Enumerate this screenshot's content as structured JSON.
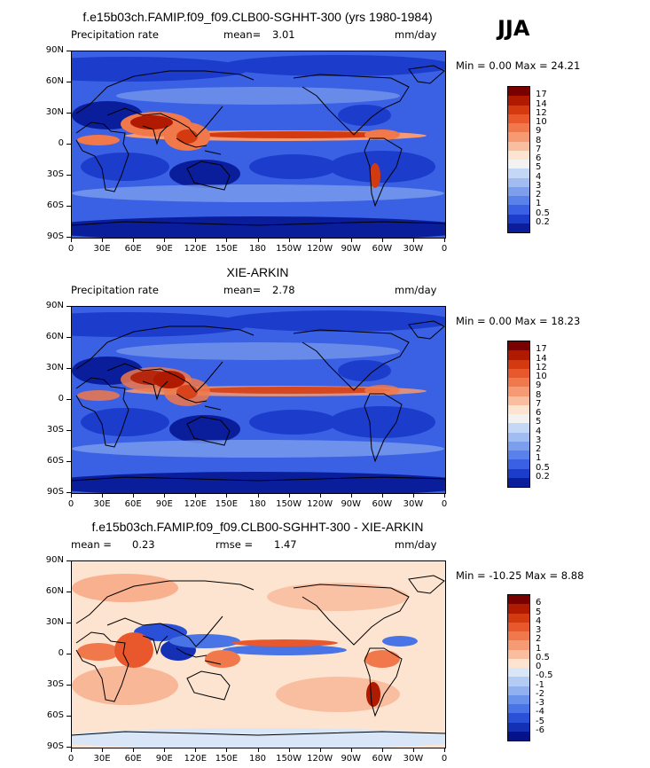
{
  "season": "JJA",
  "panels": [
    {
      "title": "f.e15b03ch.FAMIP.f09_f09.CLB00-SGHHT-300 (yrs 1980-1984)",
      "left_label": "Precipitation rate",
      "stat1_label": "mean=",
      "stat1_value": "3.01",
      "stat2_label": "",
      "stat2_value": "",
      "units": "mm/day",
      "minmax": "Min =   0.00 Max =  24.21",
      "type": "precip"
    },
    {
      "title": "XIE-ARKIN",
      "left_label": "Precipitation rate",
      "stat1_label": "mean=",
      "stat1_value": "2.78",
      "stat2_label": "",
      "stat2_value": "",
      "units": "mm/day",
      "minmax": "Min =   0.00 Max =  18.23",
      "type": "precip"
    },
    {
      "title": "f.e15b03ch.FAMIP.f09_f09.CLB00-SGHHT-300 - XIE-ARKIN",
      "left_label": "",
      "stat1_label": "mean =",
      "stat1_value": "0.23",
      "stat2_label": "rmse =",
      "stat2_value": "1.47",
      "units": "mm/day",
      "minmax": "Min = -10.25 Max =   8.88",
      "type": "diff"
    }
  ],
  "lat_labels": [
    "90N",
    "60N",
    "30N",
    "0",
    "30S",
    "60S",
    "90S"
  ],
  "lon_labels": [
    "0",
    "30E",
    "60E",
    "90E",
    "120E",
    "150E",
    "180",
    "150W",
    "120W",
    "90W",
    "60W",
    "30W",
    "0"
  ],
  "colorbars": {
    "precip": {
      "labels": [
        "17",
        "14",
        "12",
        "10",
        "9",
        "8",
        "7",
        "6",
        "5",
        "4",
        "3",
        "2",
        "1",
        "0.5",
        "0.2"
      ],
      "colors": [
        "#7a0000",
        "#b01a00",
        "#d43a10",
        "#e8582c",
        "#f0784a",
        "#f59a72",
        "#f9bea0",
        "#fde4d0",
        "#f2f2f2",
        "#c4d8f6",
        "#a0bcf0",
        "#7c9eec",
        "#5a80ea",
        "#3a60e4",
        "#1c3ccc",
        "#0a1e9c"
      ]
    },
    "diff": {
      "labels": [
        "6",
        "5",
        "4",
        "3",
        "2",
        "1",
        "0.5",
        "0",
        "-0.5",
        "-1",
        "-2",
        "-3",
        "-4",
        "-5",
        "-6"
      ],
      "colors": [
        "#7a0000",
        "#b01a00",
        "#d43a10",
        "#e8582c",
        "#f0784a",
        "#f59a72",
        "#f9bea0",
        "#fde4d0",
        "#d8e6f8",
        "#b4ccf4",
        "#90b0f0",
        "#6a92ec",
        "#4874e6",
        "#2a50d8",
        "#1430b4",
        "#06128a"
      ]
    }
  },
  "chart_data": [
    {
      "type": "heatmap",
      "title": "f.e15b03ch.FAMIP.f09_f09.CLB00-SGHHT-300 (yrs 1980-1984)",
      "field": "Precipitation rate",
      "units": "mm/day",
      "season": "JJA",
      "mean": 3.01,
      "min": 0.0,
      "max": 24.21,
      "contour_levels": [
        0.2,
        0.5,
        1,
        2,
        3,
        4,
        5,
        6,
        7,
        8,
        9,
        10,
        12,
        14,
        17
      ],
      "xlim": [
        0,
        360
      ],
      "ylim": [
        -90,
        90
      ],
      "xticks": [
        "0",
        "30E",
        "60E",
        "90E",
        "120E",
        "150E",
        "180",
        "150W",
        "120W",
        "90W",
        "60W",
        "30W",
        "0"
      ],
      "yticks": [
        "90N",
        "60N",
        "30N",
        "0",
        "30S",
        "60S",
        "90S"
      ]
    },
    {
      "type": "heatmap",
      "title": "XIE-ARKIN",
      "field": "Precipitation rate",
      "units": "mm/day",
      "mean": 2.78,
      "min": 0.0,
      "max": 18.23,
      "contour_levels": [
        0.2,
        0.5,
        1,
        2,
        3,
        4,
        5,
        6,
        7,
        8,
        9,
        10,
        12,
        14,
        17
      ],
      "xlim": [
        0,
        360
      ],
      "ylim": [
        -90,
        90
      ]
    },
    {
      "type": "heatmap",
      "title": "f.e15b03ch.FAMIP.f09_f09.CLB00-SGHHT-300 - XIE-ARKIN",
      "units": "mm/day",
      "mean": 0.23,
      "rmse": 1.47,
      "min": -10.25,
      "max": 8.88,
      "contour_levels": [
        -6,
        -5,
        -4,
        -3,
        -2,
        -1,
        -0.5,
        0,
        0.5,
        1,
        2,
        3,
        4,
        5,
        6
      ],
      "xlim": [
        0,
        360
      ],
      "ylim": [
        -90,
        90
      ]
    }
  ]
}
